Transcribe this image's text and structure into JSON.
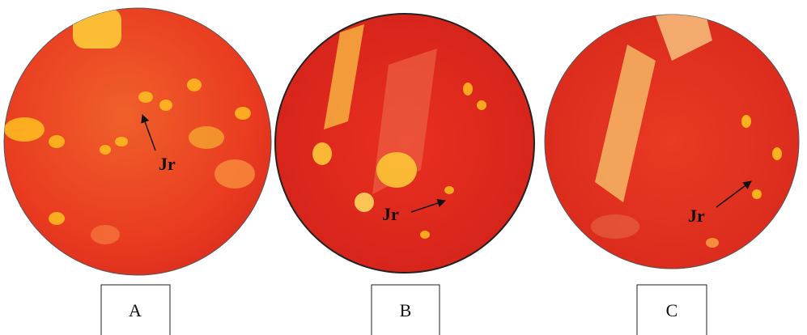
{
  "panels": [
    {
      "label": "A",
      "annotation": "Jr"
    },
    {
      "label": "B",
      "annotation": "Jr"
    },
    {
      "label": "C",
      "annotation": "Jr"
    }
  ]
}
